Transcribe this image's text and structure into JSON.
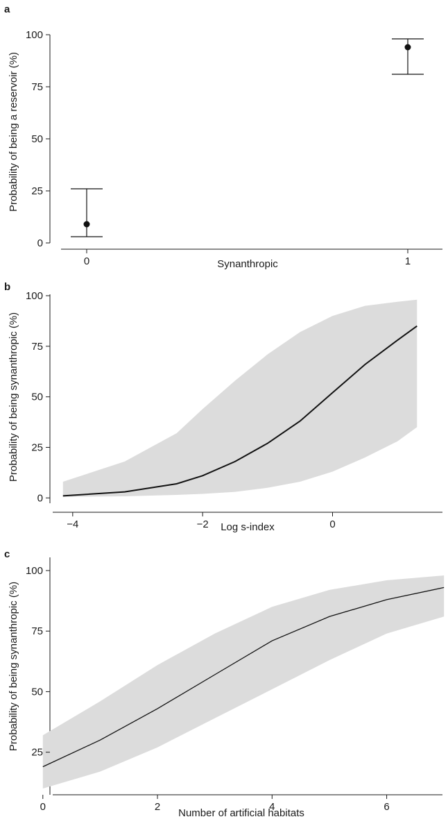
{
  "chart_data": [
    {
      "panel": "a",
      "type": "scatter",
      "xlabel": "Synanthropic",
      "ylabel": "Probability of being a reservoir (%)",
      "categories": [
        "0",
        "1"
      ],
      "ylim": [
        0,
        100
      ],
      "yticks": [
        0,
        25,
        50,
        75,
        100
      ],
      "series": [
        {
          "x": [
            "0",
            "1"
          ],
          "y": [
            9,
            94
          ],
          "lower": [
            3,
            81
          ],
          "upper": [
            26,
            98
          ]
        }
      ],
      "error_bars": true,
      "grid": false
    },
    {
      "panel": "b",
      "type": "line",
      "xlabel": "Log s-index",
      "ylabel": "Probability of being synanthropic (%)",
      "xlim": [
        -4.5,
        1.5
      ],
      "ylim": [
        -4,
        100
      ],
      "xticks": [
        -4,
        -2,
        0
      ],
      "yticks": [
        0,
        25,
        50,
        75,
        100
      ],
      "x": [
        -4.15,
        -3.2,
        -2.4,
        -2.0,
        -1.5,
        -1.0,
        -0.5,
        0.0,
        0.5,
        1.0,
        1.3
      ],
      "series": [
        {
          "values": [
            1,
            3,
            7,
            11,
            18,
            27,
            38,
            52,
            66,
            78,
            85
          ],
          "lower": [
            0.5,
            0.8,
            1.5,
            2,
            3,
            5,
            8,
            13,
            20,
            28,
            35
          ],
          "upper": [
            8,
            18,
            32,
            44,
            58,
            71,
            82,
            90,
            95,
            97,
            98
          ]
        }
      ],
      "confidence_band": true,
      "grid": false
    },
    {
      "panel": "c",
      "type": "line",
      "xlabel": "Number of artificial habitats",
      "ylabel": "Probability of being synanthropic (%)",
      "xlim": [
        -0.3,
        7.3
      ],
      "ylim": [
        8,
        100
      ],
      "xticks": [
        0,
        2,
        4,
        6
      ],
      "yticks": [
        25,
        50,
        75,
        100
      ],
      "x": [
        0,
        1,
        2,
        3,
        4,
        5,
        6,
        7
      ],
      "series": [
        {
          "values": [
            19,
            30,
            43,
            57,
            71,
            81,
            88,
            93
          ],
          "lower": [
            10,
            17,
            27,
            39,
            51,
            63,
            74,
            81
          ],
          "upper": [
            32,
            46,
            61,
            74,
            85,
            92,
            96,
            98
          ]
        }
      ],
      "confidence_band": true,
      "grid": false
    }
  ]
}
